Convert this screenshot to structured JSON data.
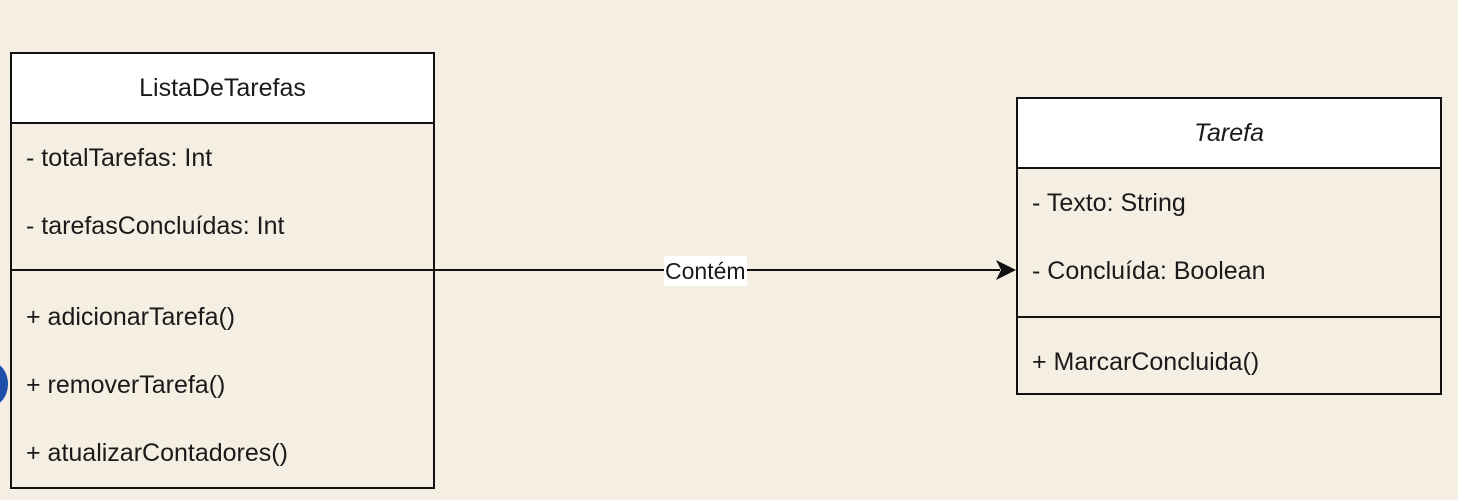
{
  "classes": [
    {
      "name": "ListaDeTarefas",
      "attributes": [
        "- totalTarefas: Int",
        "- tarefasConcluídas: Int"
      ],
      "operations": [
        "+ adicionarTarefa()",
        "+ removerTarefa()",
        "+ atualizarContadores()"
      ]
    },
    {
      "name": "Tarefa",
      "abstract": true,
      "attributes": [
        "- Texto: String",
        "- Concluída: Boolean"
      ],
      "operations": [
        "+ MarcarConcluida()"
      ]
    }
  ],
  "association": {
    "label": "Contém",
    "from": "ListaDeTarefas",
    "to": "Tarefa",
    "arrow": "open-filled"
  },
  "colors": {
    "background": "#f5eee3",
    "header_fill": "#ffffff",
    "stroke": "#111111",
    "edge_circle": "#1d4fa8"
  }
}
